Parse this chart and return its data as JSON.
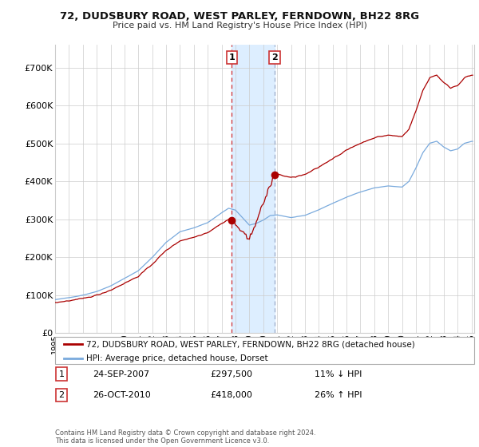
{
  "title": "72, DUDSBURY ROAD, WEST PARLEY, FERNDOWN, BH22 8RG",
  "subtitle": "Price paid vs. HM Land Registry's House Price Index (HPI)",
  "ylabel_ticks": [
    "£0",
    "£100K",
    "£200K",
    "£300K",
    "£400K",
    "£500K",
    "£600K",
    "£700K"
  ],
  "ytick_vals": [
    0,
    100000,
    200000,
    300000,
    400000,
    500000,
    600000,
    700000
  ],
  "ylim": [
    0,
    760000
  ],
  "transaction1": {
    "date": "24-SEP-2007",
    "price": 297500,
    "hpi_diff": "11% ↓ HPI",
    "label": "1",
    "year": 2007.73
  },
  "transaction2": {
    "date": "26-OCT-2010",
    "price": 418000,
    "hpi_diff": "26% ↑ HPI",
    "label": "2",
    "year": 2010.82
  },
  "legend_property": "72, DUDSBURY ROAD, WEST PARLEY, FERNDOWN, BH22 8RG (detached house)",
  "legend_hpi": "HPI: Average price, detached house, Dorset",
  "property_color": "#aa0000",
  "hpi_color": "#7aaadd",
  "highlight_color": "#ddeeff",
  "vline1_color": "#cc0000",
  "vline2_color": "#8899bb",
  "copyright_text": "Contains HM Land Registry data © Crown copyright and database right 2024.\nThis data is licensed under the Open Government Licence v3.0.",
  "table_row1": [
    "1",
    "24-SEP-2007",
    "£297,500",
    "11% ↓ HPI"
  ],
  "table_row2": [
    "2",
    "26-OCT-2010",
    "£418,000",
    "26% ↑ HPI"
  ],
  "background_color": "#ffffff",
  "grid_color": "#cccccc"
}
